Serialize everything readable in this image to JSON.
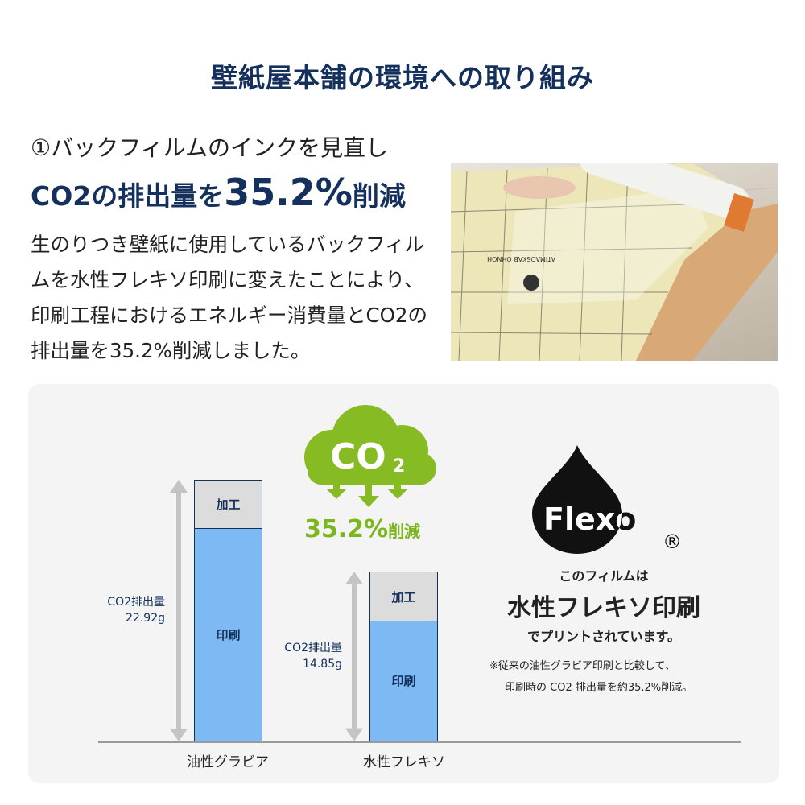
{
  "title": "壁紙屋本舗の環境への取り組み",
  "section": {
    "heading": "①バックフィルムのインクを見直し",
    "headline_prefix": "CO2の排出量を",
    "headline_value": "35.2%",
    "headline_suffix": "削減",
    "body": "生のりつき壁紙に使用しているバックフィルムを水性フレキソ印刷に変えたことにより、印刷工程におけるエネルギー消費量とCO2の排出量を35.2%削減しました。"
  },
  "photo": {
    "film_print": "ATIMAOSKAB OHNOH"
  },
  "cloud": {
    "label": "CO",
    "subscript": "2",
    "reduction": "35.2%",
    "reduction_suffix": "削減",
    "color": "#86bb23"
  },
  "flexo": {
    "logo": "Flexo",
    "registered": "®",
    "line1": "このフィルムは",
    "line2": "水性フレキソ印刷",
    "line3": "でプリントされています。",
    "note1": "※従来の油性グラビア印刷と比較して、",
    "note2": "印刷時の CO2 排出量を約35.2%削減。"
  },
  "chart_data": {
    "type": "bar",
    "stacked": true,
    "categories": [
      "油性グラビア",
      "水性フレキソ"
    ],
    "series": [
      {
        "name": "印刷",
        "values": [
          18.7,
          10.6
        ],
        "color": "#7db9f2"
      },
      {
        "name": "加工",
        "values": [
          4.22,
          4.25
        ],
        "color": "#dcdcdc"
      }
    ],
    "totals": [
      22.92,
      14.85
    ],
    "total_labels": [
      {
        "title": "CO2排出量",
        "value": "22.92g"
      },
      {
        "title": "CO2排出量",
        "value": "14.85g"
      }
    ],
    "ylim": [
      0,
      22.92
    ],
    "grid": false
  }
}
